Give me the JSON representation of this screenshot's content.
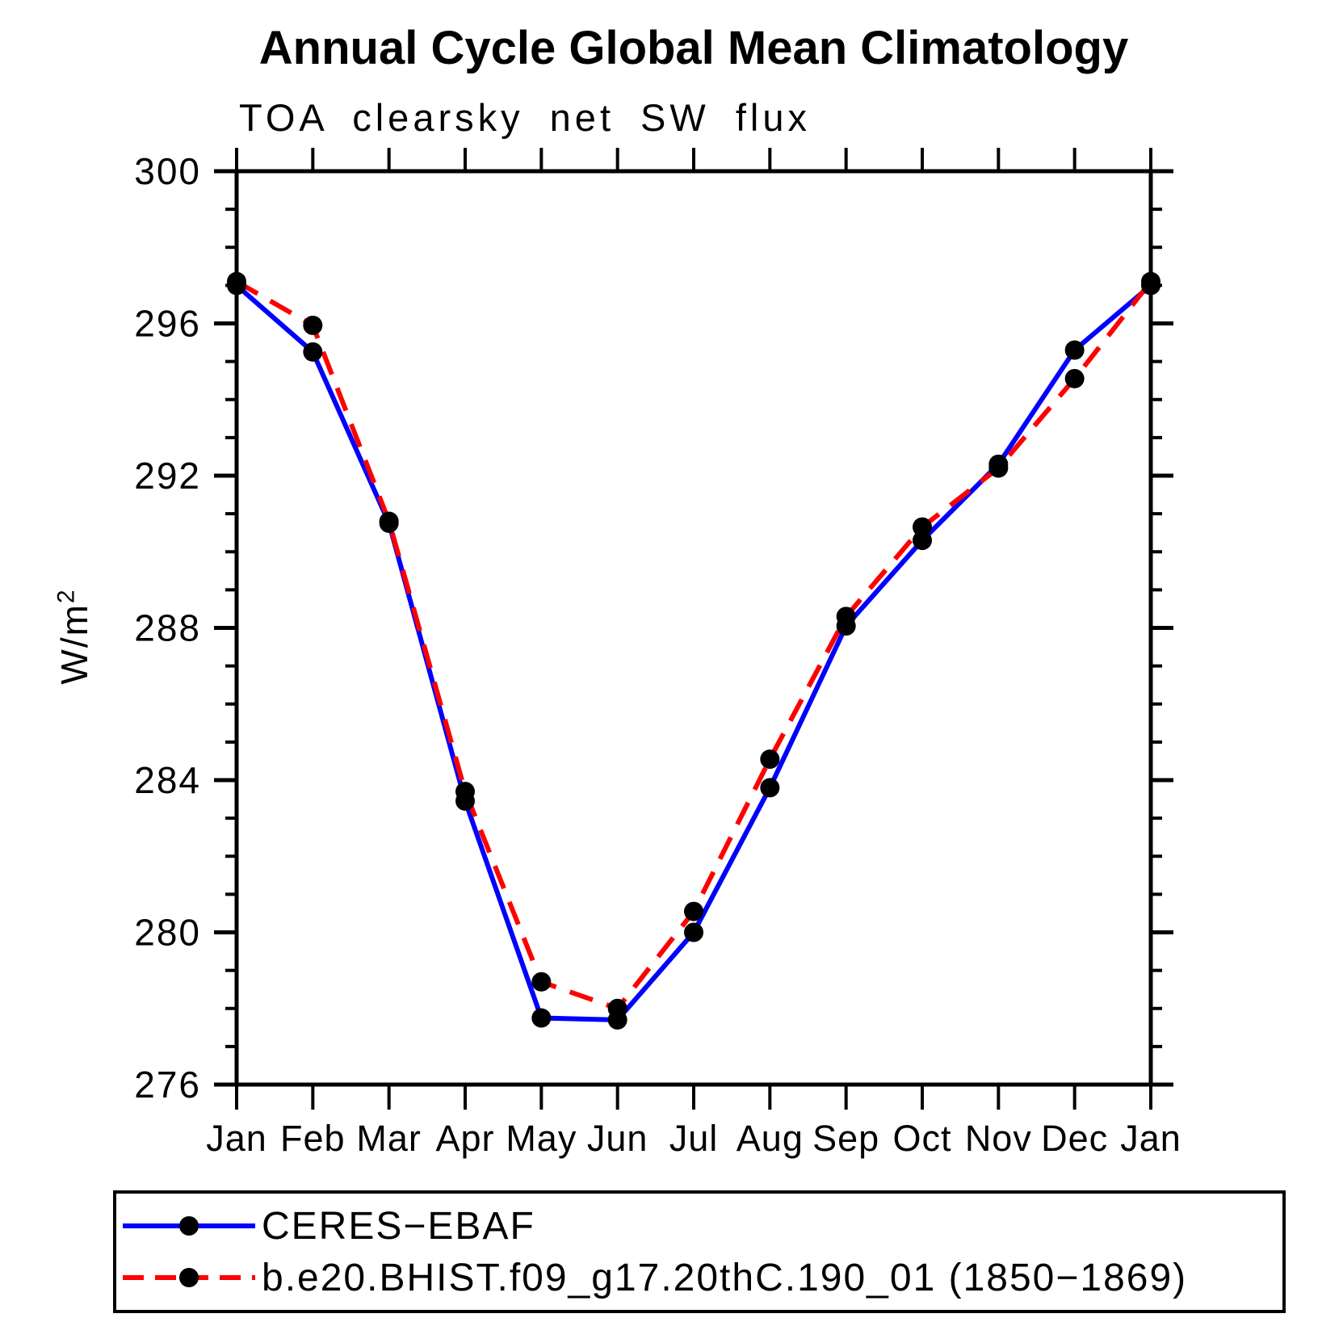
{
  "chart": {
    "title": "Annual Cycle Global Mean Climatology",
    "subtitle": "TOA clearsky net SW flux",
    "ylabel_base": "W/m",
    "ylabel_exp": "2"
  },
  "chart_data": {
    "type": "line",
    "title": "Annual Cycle Global Mean Climatology",
    "subtitle": "TOA clearsky net SW flux",
    "ylabel": "W/m^2",
    "xlabel": "",
    "x_tick_labels": [
      "Jan",
      "Feb",
      "Mar",
      "Apr",
      "May",
      "Jun",
      "Jul",
      "Aug",
      "Sep",
      "Oct",
      "Nov",
      "Dec",
      "Jan"
    ],
    "y_major_ticks": [
      276,
      280,
      284,
      288,
      292,
      296,
      300
    ],
    "y_minor_step": 1,
    "ylim": [
      276,
      300
    ],
    "grid": false,
    "legend_position": "bottom",
    "axis_color": "#000000",
    "marker_color": "#000000",
    "series": [
      {
        "name": "CERES-EBAF",
        "color": "#0000ff",
        "style": "solid",
        "marker": "circle",
        "values": [
          297.0,
          295.25,
          290.75,
          283.45,
          277.75,
          277.7,
          280.0,
          283.8,
          288.05,
          290.3,
          292.3,
          295.3,
          297.0
        ]
      },
      {
        "name": "b.e20.BHIST.f09_g17.20thC.190_01 (1850-1869)",
        "color": "#ff0000",
        "style": "dashed",
        "marker": "circle",
        "values": [
          297.1,
          295.95,
          290.8,
          283.7,
          278.7,
          278.0,
          280.55,
          284.55,
          288.3,
          290.65,
          292.2,
          294.55,
          297.1
        ]
      }
    ]
  },
  "legend": {
    "items": [
      {
        "label": "CERES−EBAF",
        "color": "#0000ff",
        "style": "solid"
      },
      {
        "label": "b.e20.BHIST.f09_g17.20thC.190_01 (1850−1869)",
        "color": "#ff0000",
        "style": "dashed"
      }
    ]
  }
}
